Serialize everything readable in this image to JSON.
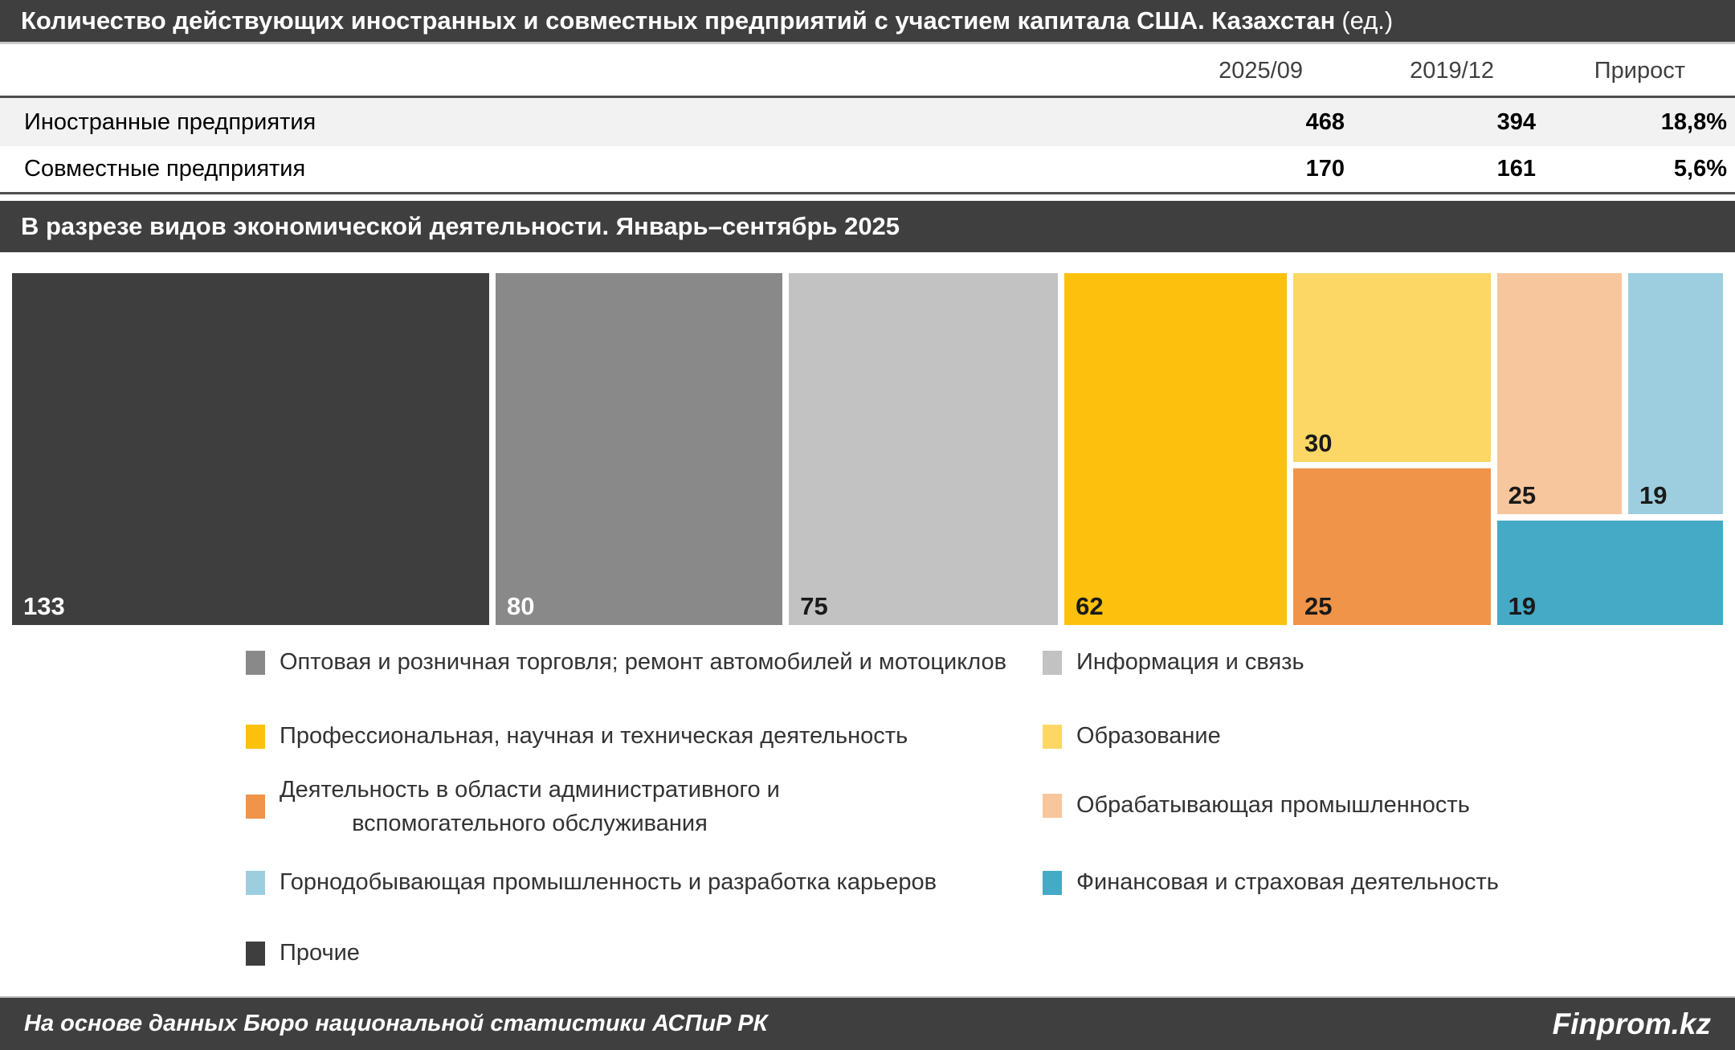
{
  "header": {
    "title_bold": "Количество действующих иностранных и совместных предприятий с участием капитала США. Казахстан",
    "title_suffix": "(ед.)"
  },
  "table": {
    "columns": [
      "2025/09",
      "2019/12",
      "Прирост"
    ],
    "rows": [
      {
        "label": "Иностранные предприятия",
        "values": [
          "468",
          "394",
          "18,8%"
        ]
      },
      {
        "label": "Совместные предприятия",
        "values": [
          "170",
          "161",
          "5,6%"
        ]
      }
    ]
  },
  "section2": {
    "title": "В разрезе видов экономической деятельности. Январь–сентябрь 2025"
  },
  "chart_data": {
    "type": "treemap",
    "title": "В разрезе видов экономической деятельности. Январь–сентябрь 2025",
    "units": "ед.",
    "total": 468,
    "items": [
      {
        "label": "Прочие",
        "value": 133,
        "color": "#3E3E3E",
        "value_color": "#FFFFFF"
      },
      {
        "label": "Оптовая и розничная торговля; ремонт автомобилей и мотоциклов",
        "value": 80,
        "color": "#898989",
        "value_color": "#FFFFFF"
      },
      {
        "label": "Информация и связь",
        "value": 75,
        "color": "#C2C2C2",
        "value_color": "#1A1A1A"
      },
      {
        "label": "Профессиональная, научная и техническая деятельность",
        "value": 62,
        "color": "#FDC00D",
        "value_color": "#1A1A1A"
      },
      {
        "label": "Образование",
        "value": 30,
        "color": "#FCD765",
        "value_color": "#1A1A1A"
      },
      {
        "label": "Деятельность в области административного и вспомогательного обслуживания",
        "label_lines": [
          "Деятельность в области административного и",
          "вспомогательного обслуживания"
        ],
        "value": 25,
        "color": "#F0944A",
        "value_color": "#1A1A1A"
      },
      {
        "label": "Обрабатывающая промышленность",
        "value": 25,
        "color": "#F8C69C",
        "value_color": "#1A1A1A"
      },
      {
        "label": "Горнодобывающая промышленность и разработка карьеров",
        "value": 19,
        "color": "#9CCEDF",
        "value_color": "#1A1A1A"
      },
      {
        "label": "Финансовая и страховая деятельность",
        "value": 19,
        "color": "#45AAC6",
        "value_color": "#1A1A1A"
      }
    ]
  },
  "footer": {
    "source": "На основе данных Бюро национальной статистики АСПиР РК",
    "brand": "Finprom.kz"
  }
}
